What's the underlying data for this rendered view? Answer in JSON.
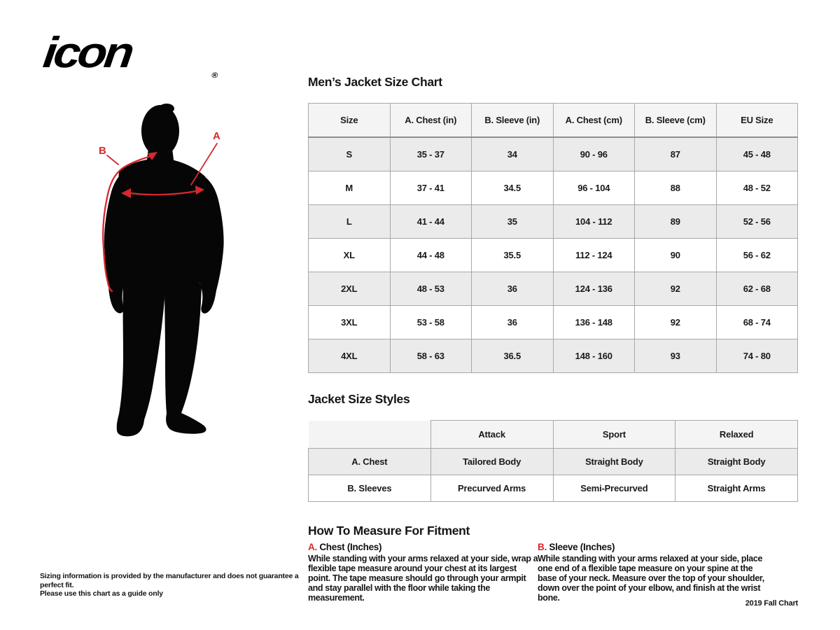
{
  "brand": {
    "logo_text": "icon",
    "registered_mark": "®"
  },
  "colors": {
    "accent_red": "#d7282d",
    "silhouette_black": "#060606",
    "row_gray": "#ebebeb",
    "header_gray": "#f4f4f4",
    "border_gray": "#a8a8a8"
  },
  "figure": {
    "chest_label": "A",
    "sleeve_label": "B"
  },
  "size_chart": {
    "title": "Men’s Jacket Size Chart",
    "columns": [
      "Size",
      "A. Chest (in)",
      "B. Sleeve (in)",
      "A. Chest (cm)",
      "B. Sleeve (cm)",
      "EU Size"
    ],
    "rows": [
      [
        "S",
        "35 - 37",
        "34",
        "90 - 96",
        "87",
        "45 - 48"
      ],
      [
        "M",
        "37 - 41",
        "34.5",
        "96 - 104",
        "88",
        "48 - 52"
      ],
      [
        "L",
        "41 - 44",
        "35",
        "104 - 112",
        "89",
        "52 - 56"
      ],
      [
        "XL",
        "44 - 48",
        "35.5",
        "112 - 124",
        "90",
        "56 - 62"
      ],
      [
        "2XL",
        "48 - 53",
        "36",
        "124 - 136",
        "92",
        "62 - 68"
      ],
      [
        "3XL",
        "53 - 58",
        "36",
        "136 - 148",
        "92",
        "68 - 74"
      ],
      [
        "4XL",
        "58 - 63",
        "36.5",
        "148 - 160",
        "93",
        "74 - 80"
      ]
    ]
  },
  "style_chart": {
    "title": "Jacket Size Styles",
    "columns": [
      "",
      "Attack",
      "Sport",
      "Relaxed"
    ],
    "rows": [
      [
        "A. Chest",
        "Tailored Body",
        "Straight Body",
        "Straight Body"
      ],
      [
        "B. Sleeves",
        "Precurved Arms",
        "Semi-Precurved",
        "Straight Arms"
      ]
    ]
  },
  "how_to": {
    "title": "How To Measure For Fitment",
    "sections": [
      {
        "letter": "A.",
        "heading": "Chest (Inches)",
        "body": "While standing with your arms relaxed at your side, wrap a flexible tape measure around your chest at its largest point. The tape measure should go through your armpit and stay parallel with the floor while taking the measurement."
      },
      {
        "letter": "B.",
        "heading": "Sleeve (Inches)",
        "body": "While standing with your arms relaxed at your side, place one end of a flexible tape measure on your spine at the base of your neck. Measure over the top of your shoulder, down over the point of your elbow, and finish at the wrist bone."
      }
    ]
  },
  "footer": {
    "disclaimer_line1": "Sizing information is provided by the manufacturer and does not guarantee a perfect fit.",
    "disclaimer_line2": "Please use this chart as a guide only",
    "chart_version": "2019 Fall Chart"
  }
}
